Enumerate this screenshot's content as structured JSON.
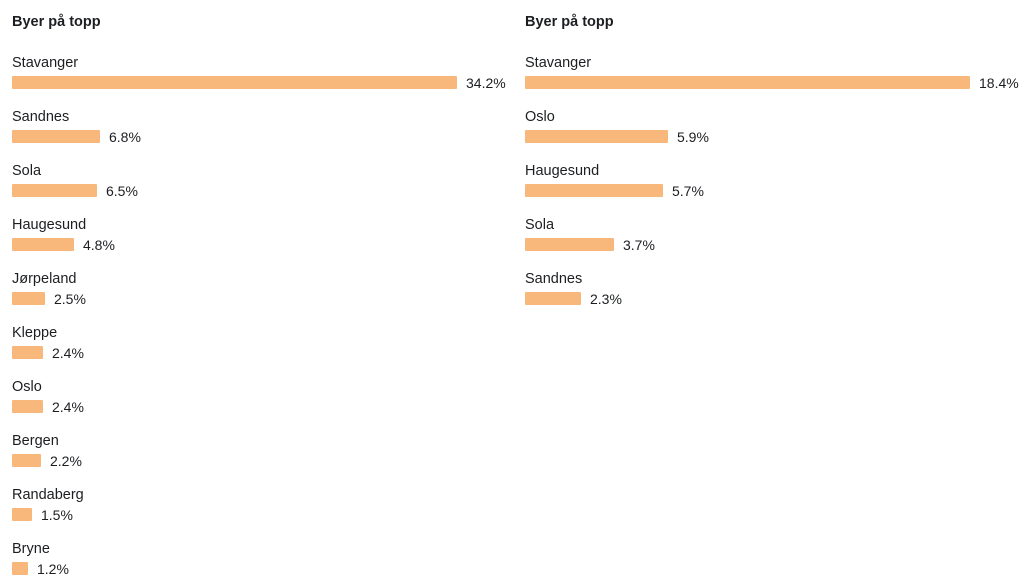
{
  "colors": {
    "bar": "#f8b87c"
  },
  "chart_data": [
    {
      "type": "bar",
      "orientation": "horizontal",
      "title": "Byer på topp",
      "categories": [
        "Stavanger",
        "Sandnes",
        "Sola",
        "Haugesund",
        "Jørpeland",
        "Kleppe",
        "Oslo",
        "Bergen",
        "Randaberg",
        "Bryne"
      ],
      "values": [
        34.2,
        6.8,
        6.5,
        4.8,
        2.5,
        2.4,
        2.4,
        2.2,
        1.5,
        1.2
      ],
      "value_labels": [
        "34.2%",
        "6.8%",
        "6.5%",
        "4.8%",
        "2.5%",
        "2.4%",
        "2.4%",
        "2.2%",
        "1.5%",
        "1.2%"
      ],
      "unit": "%",
      "grid": false,
      "legend": "none"
    },
    {
      "type": "bar",
      "orientation": "horizontal",
      "title": "Byer på topp",
      "categories": [
        "Stavanger",
        "Oslo",
        "Haugesund",
        "Sola",
        "Sandnes"
      ],
      "values": [
        18.4,
        5.9,
        5.7,
        3.7,
        2.3
      ],
      "value_labels": [
        "18.4%",
        "5.9%",
        "5.7%",
        "3.7%",
        "2.3%"
      ],
      "unit": "%",
      "grid": false,
      "legend": "none"
    }
  ]
}
